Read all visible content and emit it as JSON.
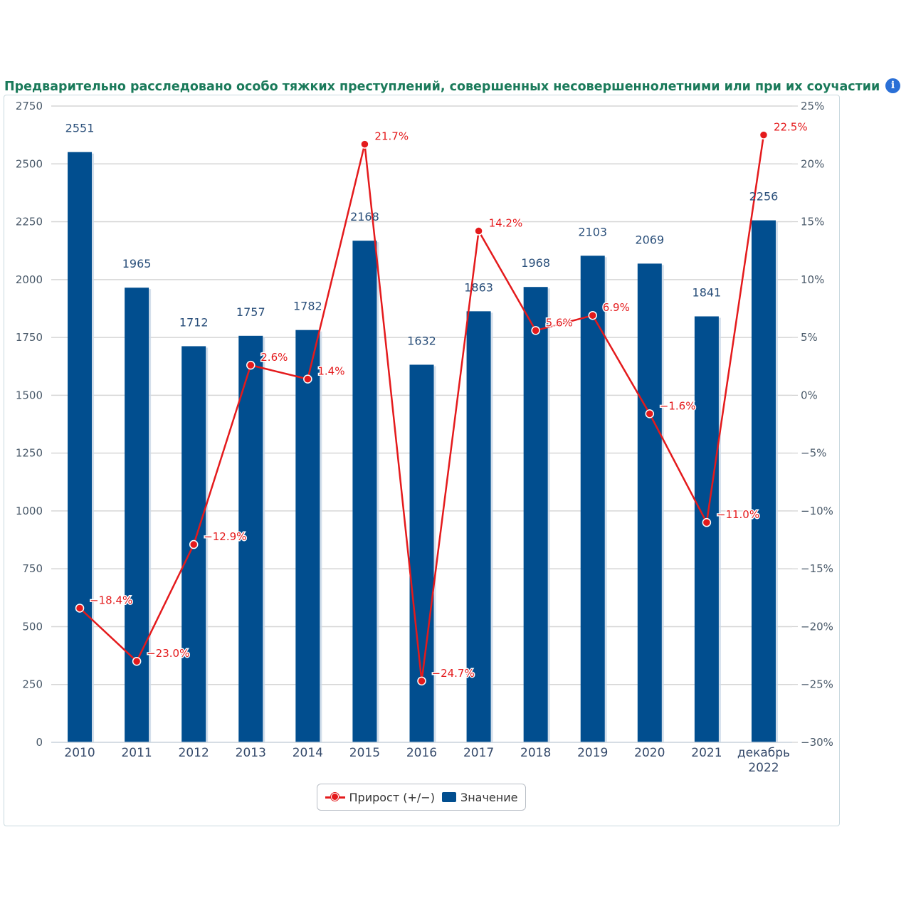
{
  "title": "Предварительно расследовано особо тяжких преступлений, совершенных несовершеннолетними или при их соучастии",
  "info_icon": "info-icon",
  "legend": {
    "line_label": "Прирост (+/−)",
    "bar_label": "Значение"
  },
  "colors": {
    "bar": "#014e8f",
    "line": "#e41a1c",
    "bar_label": "#2a4f7a",
    "line_label": "#e41a1c",
    "title": "#1a7a5a"
  },
  "chart_data": {
    "type": "bar",
    "categories": [
      "2010",
      "2011",
      "2012",
      "2013",
      "2014",
      "2015",
      "2016",
      "2017",
      "2018",
      "2019",
      "2020",
      "2021",
      [
        "декабрь",
        "2022"
      ]
    ],
    "series": [
      {
        "name": "Значение",
        "type": "bar",
        "axis": "left",
        "values": [
          2551,
          1965,
          1712,
          1757,
          1782,
          2168,
          1632,
          1863,
          1968,
          2103,
          2069,
          1841,
          2256
        ],
        "labels": [
          "2551",
          "1965",
          "1712",
          "1757",
          "1782",
          "2168",
          "1632",
          "1863",
          "1968",
          "2103",
          "2069",
          "1841",
          "2256"
        ]
      },
      {
        "name": "Прирост (+/−)",
        "type": "line",
        "axis": "right",
        "values": [
          -18.4,
          -23.0,
          -12.9,
          2.6,
          1.4,
          21.7,
          -24.7,
          14.2,
          5.6,
          6.9,
          -1.6,
          -11.0,
          22.5
        ],
        "labels": [
          "−18.4%",
          "−23.0%",
          "−12.9%",
          "2.6%",
          "1.4%",
          "21.7%",
          "−24.7%",
          "14.2%",
          "5.6%",
          "6.9%",
          "−1.6%",
          "−11.0%",
          "22.5%"
        ]
      }
    ],
    "y_left": {
      "range": [
        0,
        2750
      ],
      "ticks": [
        0,
        250,
        500,
        750,
        1000,
        1250,
        1500,
        1750,
        2000,
        2250,
        2500,
        2750
      ],
      "tick_labels": [
        "0",
        "250",
        "500",
        "750",
        "1000",
        "1250",
        "1500",
        "1750",
        "2000",
        "2250",
        "2500",
        "2750"
      ]
    },
    "y_right": {
      "range": [
        -30,
        25
      ],
      "ticks": [
        -30,
        -25,
        -20,
        -15,
        -10,
        -5,
        0,
        5,
        10,
        15,
        20,
        25
      ],
      "tick_labels": [
        "−30%",
        "−25%",
        "−20%",
        "−15%",
        "−10%",
        "−5%",
        "0%",
        "5%",
        "10%",
        "15%",
        "20%",
        "25%"
      ]
    },
    "grid": true,
    "legend_position": "bottom-center"
  }
}
